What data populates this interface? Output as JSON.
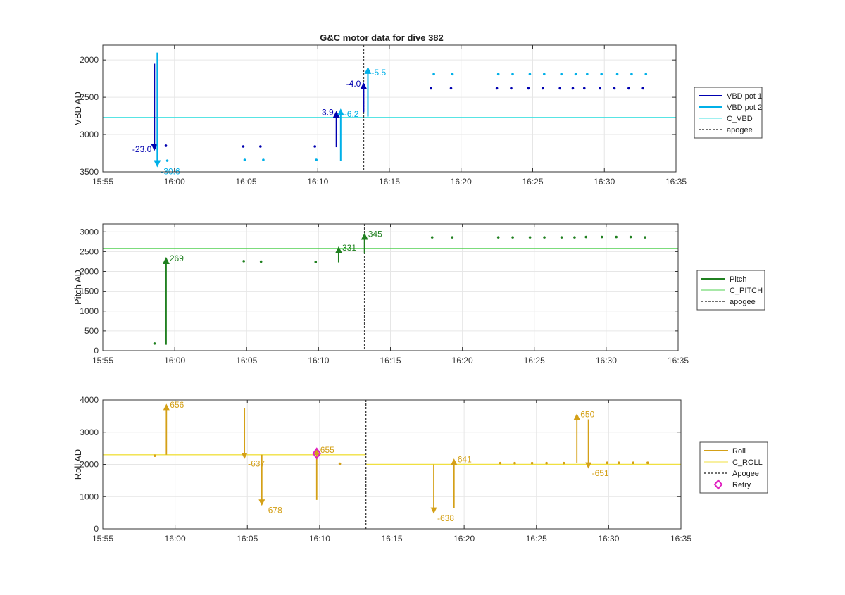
{
  "title": "G&C motor data for dive 382",
  "time_ticks": [
    "15:55",
    "16:00",
    "16:05",
    "16:10",
    "16:15",
    "16:20",
    "16:25",
    "16:30",
    "16:35"
  ],
  "colors": {
    "vbd1": "#0000b0",
    "vbd2": "#00b0e8",
    "c_vbd": "#40e0e0",
    "pitch": "#208020",
    "c_pitch": "#50d050",
    "roll": "#d4a017",
    "c_roll": "#f0e040",
    "apogee": "#404040",
    "retry": "#e020c0",
    "grid": "#e6e6e6"
  },
  "chart_data": [
    {
      "type": "scatter",
      "title": "G&C motor data for dive 382",
      "xlabel": "",
      "ylabel": "VBD AD",
      "xlim": [
        "15:55",
        "16:35"
      ],
      "ylim": [
        1800,
        3500
      ],
      "y_reversed": true,
      "yticks": [
        2000,
        2500,
        3000,
        3500
      ],
      "grid": true,
      "legend_position": "outside-right",
      "legend": [
        "VBD pot 1",
        "VBD pot 2",
        "C_VBD",
        "apogee"
      ],
      "apogee_time": "16:13.2",
      "series": [
        {
          "name": "VBD pot 1",
          "points": [
            [
              "15:59.4",
              3150
            ],
            [
              "16:04.8",
              3160
            ],
            [
              "16:06",
              3160
            ],
            [
              "16:09.8",
              3160
            ],
            [
              "16:17.9",
              2380
            ],
            [
              "16:19.3",
              2380
            ],
            [
              "16:22.5",
              2380
            ],
            [
              "16:23.5",
              2380
            ],
            [
              "16:24.7",
              2380
            ],
            [
              "16:25.7",
              2380
            ],
            [
              "16:26.9",
              2380
            ],
            [
              "16:27.8",
              2380
            ],
            [
              "16:28.6",
              2380
            ],
            [
              "16:29.7",
              2380
            ],
            [
              "16:30.7",
              2380
            ],
            [
              "16:31.7",
              2380
            ],
            [
              "16:32.7",
              2380
            ]
          ],
          "moves": [
            [
              "15:58.6",
              2050,
              3200,
              "-23.0"
            ],
            [
              "16:11.3",
              3170,
              2700,
              "-3.9"
            ],
            [
              "16:13.2",
              2700,
              2320,
              "-4.0"
            ]
          ]
        },
        {
          "name": "VBD pot 2",
          "points": [
            [
              "15:59.5",
              3350
            ],
            [
              "16:04.9",
              3340
            ],
            [
              "16:06.2",
              3340
            ],
            [
              "16:09.9",
              3340
            ],
            [
              "16:18.1",
              2190
            ],
            [
              "16:19.4",
              2190
            ],
            [
              "16:22.6",
              2190
            ],
            [
              "16:23.6",
              2190
            ],
            [
              "16:24.8",
              2190
            ],
            [
              "16:25.8",
              2190
            ],
            [
              "16:27",
              2190
            ],
            [
              "16:28",
              2190
            ],
            [
              "16:28.8",
              2190
            ],
            [
              "16:29.8",
              2190
            ],
            [
              "16:30.9",
              2190
            ],
            [
              "16:31.9",
              2190
            ],
            [
              "16:32.9",
              2190
            ]
          ],
          "moves": [
            [
              "15:58.8",
              1900,
              3420,
              "-30.6"
            ],
            [
              "16:11.6",
              3350,
              2670,
              "-6.2"
            ],
            [
              "16:13.5",
              2760,
              2110,
              "-5.5"
            ]
          ]
        },
        {
          "name": "C_VBD",
          "constant": 2770
        }
      ]
    },
    {
      "type": "scatter",
      "xlabel": "",
      "ylabel": "Pitch AD",
      "xlim": [
        "15:55",
        "16:35"
      ],
      "ylim": [
        0,
        3200
      ],
      "yticks": [
        0,
        500,
        1000,
        1500,
        2000,
        2500,
        3000
      ],
      "grid": true,
      "legend_position": "outside-right",
      "legend": [
        "Pitch",
        "C_PITCH",
        "apogee"
      ],
      "apogee_time": "16:13.2",
      "series": [
        {
          "name": "Pitch",
          "points": [
            [
              "15:58.6",
              180
            ],
            [
              "16:04.8",
              2260
            ],
            [
              "16:06",
              2250
            ],
            [
              "16:09.8",
              2240
            ],
            [
              "16:17.9",
              2860
            ],
            [
              "16:19.3",
              2860
            ],
            [
              "16:22.5",
              2860
            ],
            [
              "16:23.5",
              2860
            ],
            [
              "16:24.7",
              2860
            ],
            [
              "16:25.7",
              2860
            ],
            [
              "16:26.9",
              2860
            ],
            [
              "16:27.8",
              2860
            ],
            [
              "16:28.6",
              2870
            ],
            [
              "16:29.7",
              2870
            ],
            [
              "16:30.7",
              2870
            ],
            [
              "16:31.7",
              2870
            ],
            [
              "16:32.7",
              2860
            ]
          ],
          "moves": [
            [
              "15:59.4",
              150,
              2330,
              "269"
            ],
            [
              "16:11.4",
              2230,
              2600,
              "331"
            ],
            [
              "16:13.2",
              2450,
              2940,
              "345"
            ]
          ]
        },
        {
          "name": "C_PITCH",
          "constant": 2580
        }
      ]
    },
    {
      "type": "scatter",
      "xlabel": "",
      "ylabel": "Roll AD",
      "xlim": [
        "15:55",
        "16:35"
      ],
      "ylim": [
        0,
        4000
      ],
      "yticks": [
        0,
        1000,
        2000,
        3000,
        4000
      ],
      "grid": true,
      "legend_position": "outside-right",
      "legend": [
        "Roll",
        "C_ROLL",
        "Apogee",
        "Retry"
      ],
      "apogee_time": "16:13.2",
      "series": [
        {
          "name": "Roll",
          "points": [
            [
              "15:58.6",
              2270
            ],
            [
              "16:11.4",
              2020
            ],
            [
              "16:22.5",
              2040
            ],
            [
              "16:23.5",
              2040
            ],
            [
              "16:24.7",
              2040
            ],
            [
              "16:25.7",
              2040
            ],
            [
              "16:26.9",
              2040
            ],
            [
              "16:29.9",
              2050
            ],
            [
              "16:30.7",
              2050
            ],
            [
              "16:31.7",
              2050
            ],
            [
              "16:32.7",
              2050
            ]
          ],
          "moves": [
            [
              "15:59.4",
              2300,
              3850,
              "656"
            ],
            [
              "16:04.8",
              3750,
              2200,
              "-637"
            ],
            [
              "16:06",
              2300,
              750,
              "-678"
            ],
            [
              "16:09.8",
              900,
              2450,
              "655"
            ],
            [
              "16:17.9",
              2000,
              500,
              "-638"
            ],
            [
              "16:19.3",
              650,
              2150,
              "641"
            ],
            [
              "16:27.8",
              2050,
              3550,
              "650"
            ],
            [
              "16:28.6",
              3400,
              1900,
              "-651"
            ]
          ]
        },
        {
          "name": "C_ROLL",
          "segments": [
            [
              "15:55",
              "16:13.2",
              2300
            ],
            [
              "16:13.2",
              "16:35",
              2000
            ]
          ]
        },
        {
          "name": "Retry",
          "points": [
            [
              "16:09.8",
              2340
            ]
          ]
        }
      ]
    }
  ]
}
